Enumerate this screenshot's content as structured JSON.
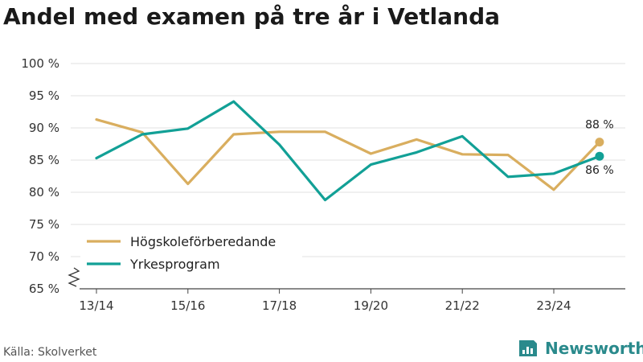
{
  "title": "Andel med examen på tre år i Vetlanda",
  "source": "Källa: Skolverket",
  "brand": "Newsworthy",
  "colors": {
    "hogskole": "#d9ae5f",
    "yrkes": "#12a096",
    "grid": "#e2e2e2",
    "brand": "#2a8a8c"
  },
  "chart_data": {
    "type": "line",
    "title": "Andel med examen på tre år i Vetlanda",
    "xlabel": "",
    "ylabel": "",
    "categories": [
      "13/14",
      "14/15",
      "15/16",
      "16/17",
      "17/18",
      "18/19",
      "19/20",
      "20/21",
      "21/22",
      "22/23",
      "23/24",
      "24/25"
    ],
    "x_tick_labels": [
      "13/14",
      "15/16",
      "17/18",
      "19/20",
      "21/22",
      "23/24"
    ],
    "y_ticks": [
      65,
      70,
      75,
      80,
      85,
      90,
      95,
      100
    ],
    "y_tick_labels": [
      "65 %",
      "70 %",
      "75 %",
      "80 %",
      "85 %",
      "90 %",
      "95 %",
      "100 %"
    ],
    "ylim": [
      65,
      100
    ],
    "axis_break": true,
    "grid": true,
    "legend_position": "bottom-left",
    "series": [
      {
        "name": "Högskoleförberedande",
        "color": "#d9ae5f",
        "values": [
          91.3,
          89.3,
          81.3,
          89.0,
          89.4,
          89.4,
          86.0,
          88.2,
          85.9,
          85.8,
          80.4,
          87.8
        ],
        "end_label": "88 %"
      },
      {
        "name": "Yrkesprogram",
        "color": "#12a096",
        "values": [
          85.3,
          89.0,
          89.9,
          94.1,
          87.4,
          78.8,
          84.3,
          86.2,
          88.7,
          82.4,
          82.9,
          85.6
        ],
        "end_label": "86 %"
      }
    ]
  }
}
